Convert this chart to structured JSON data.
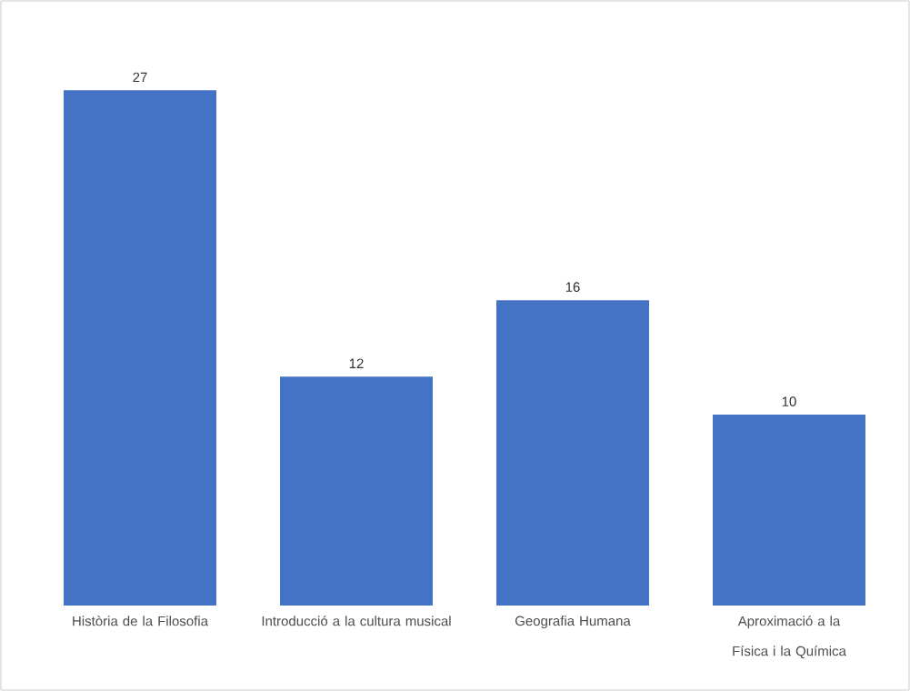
{
  "chart_data": {
    "type": "bar",
    "categories": [
      "Història de la Filosofia",
      "Introducció a la cultura musical",
      "Geografia Humana",
      "Aproximació a la Física i la Química"
    ],
    "values": [
      27,
      12,
      16,
      10
    ],
    "color": "#4472c4",
    "data_labels": true
  }
}
